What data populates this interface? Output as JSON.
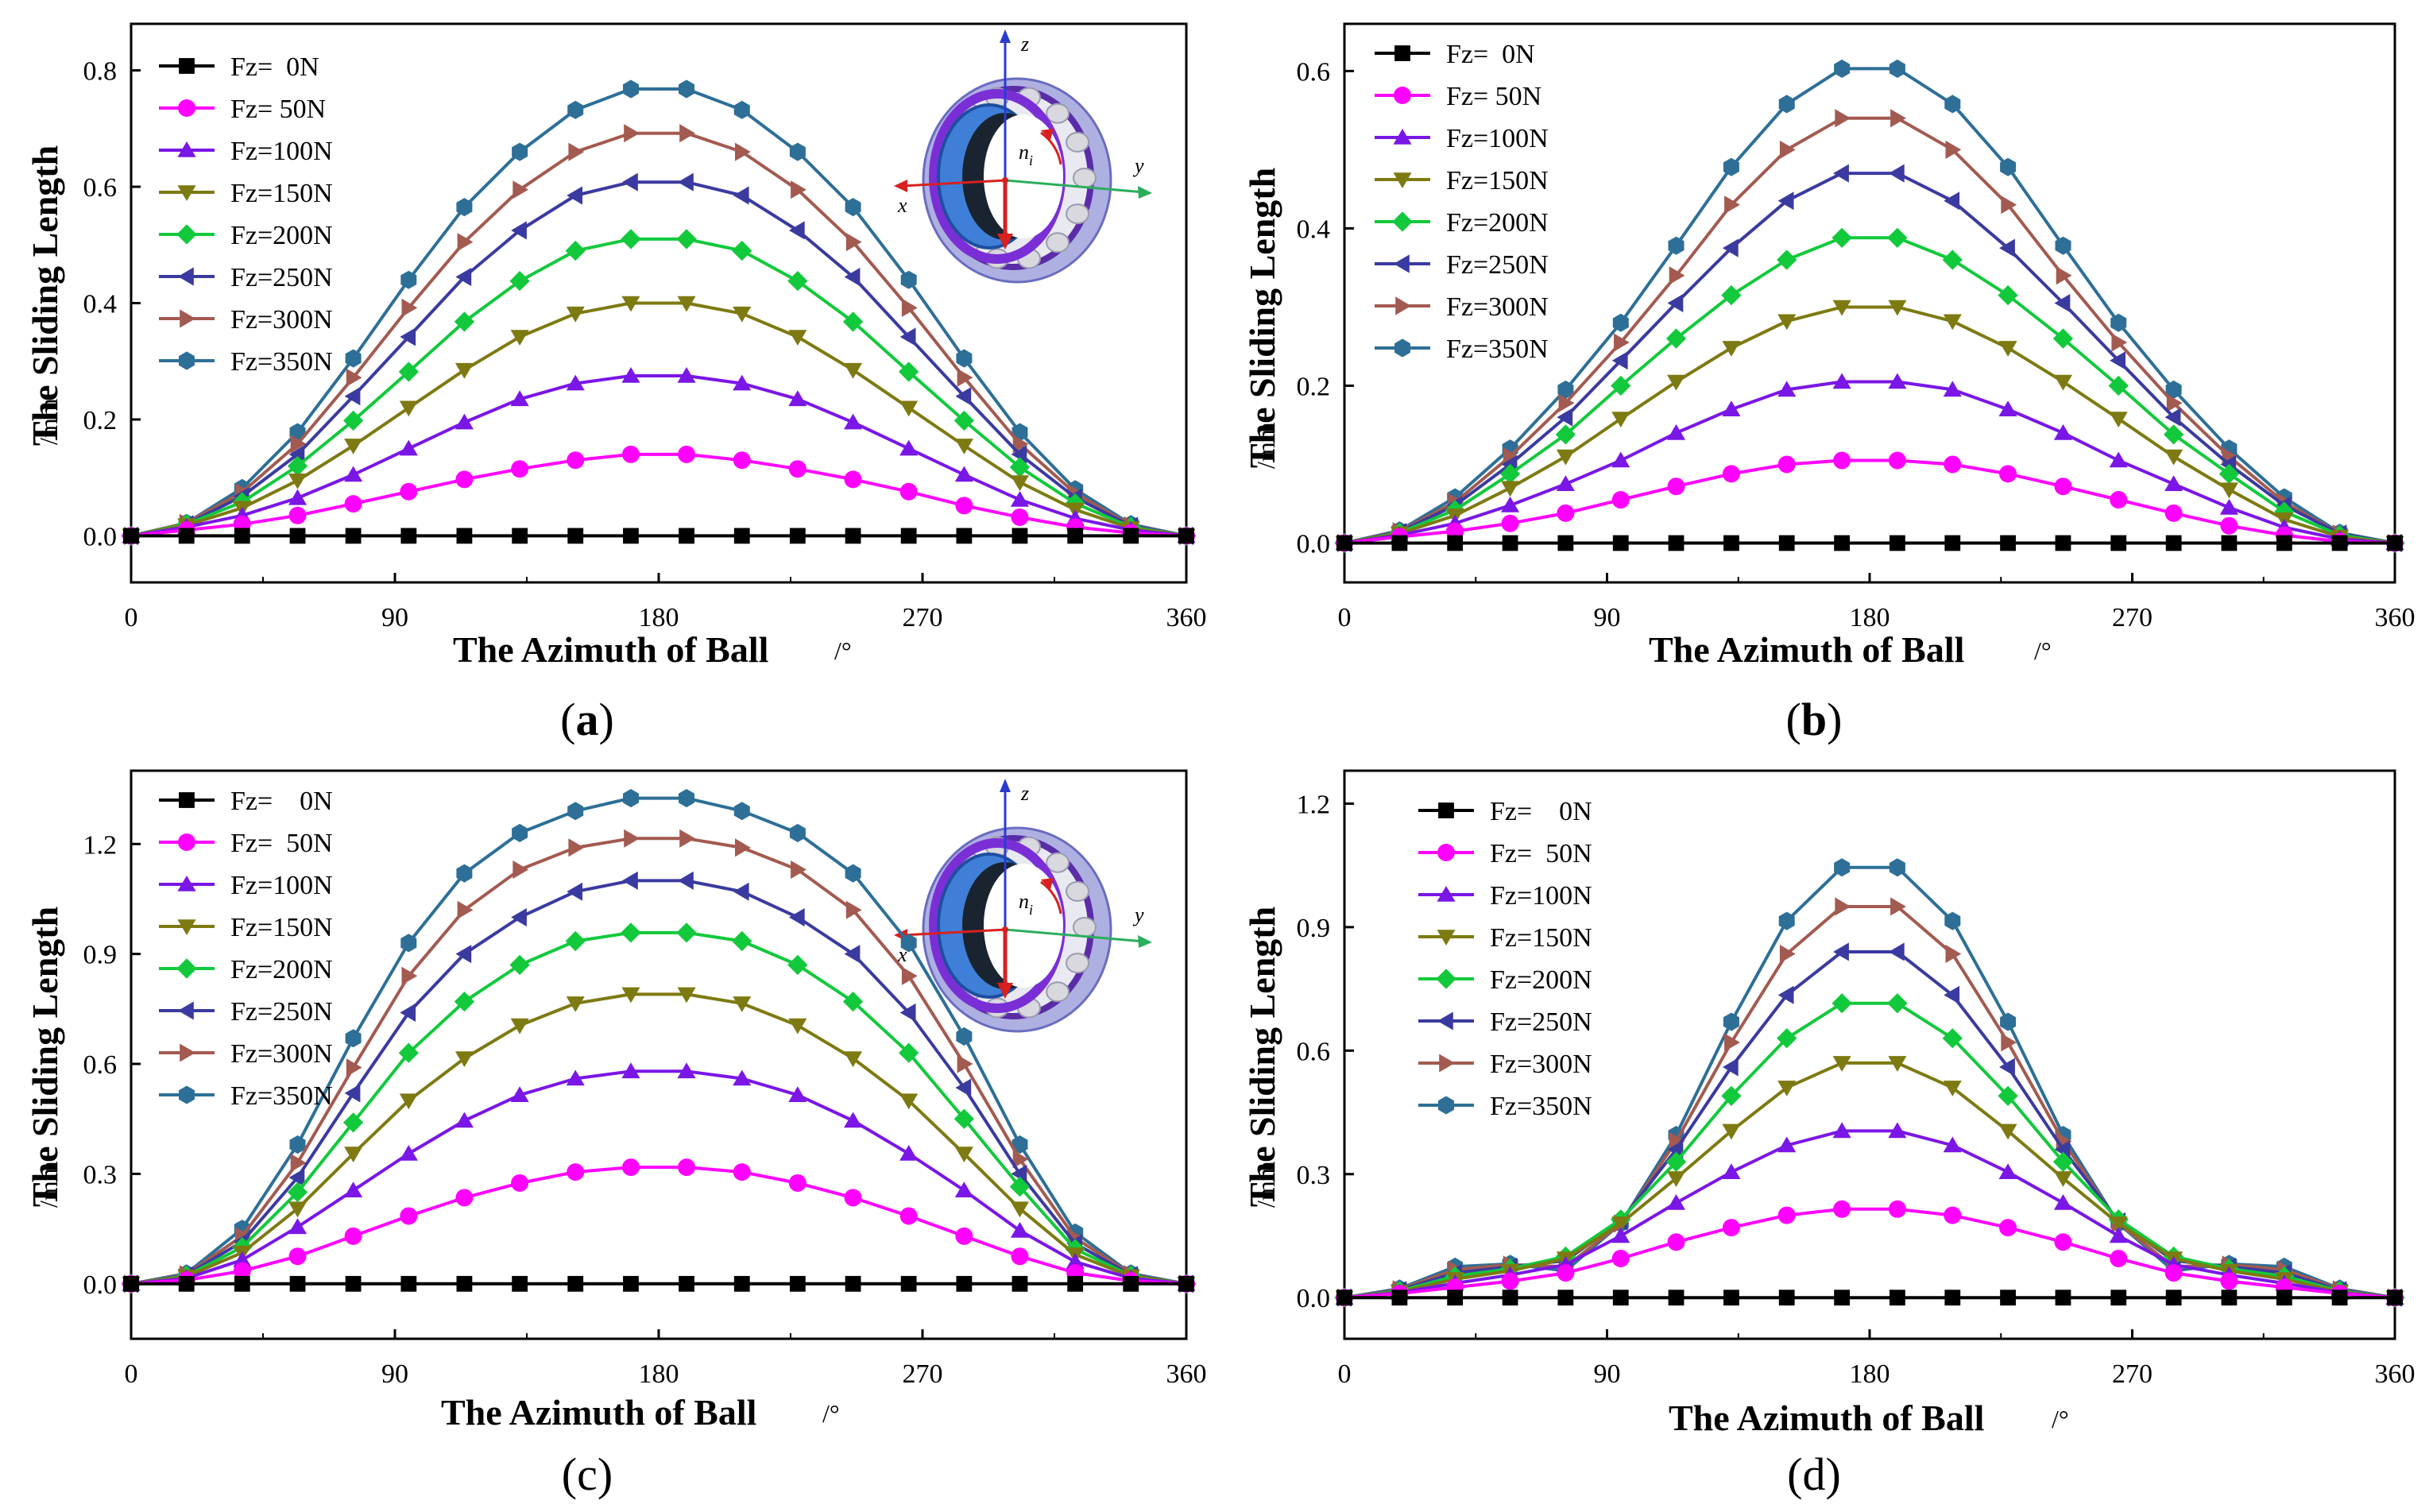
{
  "chart_data": [
    {
      "id": "a",
      "type": "line",
      "panel_label": "a",
      "xlabel": "The Azimuth of Ball",
      "xunit": "/°",
      "ylabel": "The Sliding Length",
      "yunit": "/mm",
      "xlim": [
        0,
        360
      ],
      "ylim": [
        -0.08,
        0.88
      ],
      "xticks": [
        0,
        90,
        180,
        270,
        360
      ],
      "yticks": [
        0.0,
        0.2,
        0.4,
        0.6,
        0.8
      ],
      "ytick_labels": [
        "0.0",
        "0.2",
        "0.4",
        "0.6",
        "0.8"
      ],
      "legend_labels": [
        "Fz=  0N",
        "Fz= 50N",
        "Fz=100N",
        "Fz=150N",
        "Fz=200N",
        "Fz=250N",
        "Fz=300N",
        "Fz=350N"
      ],
      "x": [
        0,
        18.9,
        37.9,
        56.8,
        75.8,
        94.7,
        113.7,
        132.6,
        151.6,
        170.5,
        189.5,
        208.4,
        227.4,
        246.3,
        265.3,
        284.2,
        303.2,
        322.1,
        341.1,
        360
      ],
      "series": [
        {
          "name": "Fz=  0N",
          "values": [
            0,
            0,
            0,
            0,
            0,
            0,
            0,
            0,
            0,
            0,
            0,
            0,
            0,
            0,
            0,
            0,
            0,
            0,
            0,
            0
          ]
        },
        {
          "name": "Fz= 50N",
          "values": [
            0,
            0.01,
            0.02,
            0.035,
            0.055,
            0.076,
            0.097,
            0.115,
            0.13,
            0.14,
            0.14,
            0.13,
            0.115,
            0.097,
            0.076,
            0.052,
            0.032,
            0.015,
            0.005,
            0
          ]
        },
        {
          "name": "Fz=100N",
          "values": [
            0,
            0.015,
            0.035,
            0.065,
            0.105,
            0.15,
            0.195,
            0.235,
            0.262,
            0.275,
            0.275,
            0.262,
            0.235,
            0.195,
            0.15,
            0.105,
            0.062,
            0.03,
            0.01,
            0
          ]
        },
        {
          "name": "Fz=150N",
          "values": [
            0,
            0.018,
            0.048,
            0.095,
            0.155,
            0.22,
            0.285,
            0.342,
            0.382,
            0.4,
            0.4,
            0.382,
            0.342,
            0.285,
            0.22,
            0.155,
            0.092,
            0.045,
            0.013,
            0
          ]
        },
        {
          "name": "Fz=200N",
          "values": [
            0,
            0.02,
            0.058,
            0.12,
            0.198,
            0.282,
            0.368,
            0.438,
            0.49,
            0.51,
            0.51,
            0.49,
            0.438,
            0.368,
            0.282,
            0.198,
            0.118,
            0.056,
            0.015,
            0
          ]
        },
        {
          "name": "Fz=250N",
          "values": [
            0,
            0.02,
            0.068,
            0.14,
            0.24,
            0.342,
            0.445,
            0.525,
            0.585,
            0.608,
            0.608,
            0.585,
            0.525,
            0.445,
            0.342,
            0.24,
            0.14,
            0.066,
            0.017,
            0
          ]
        },
        {
          "name": "Fz=300N",
          "values": [
            0,
            0.022,
            0.075,
            0.158,
            0.272,
            0.392,
            0.505,
            0.595,
            0.66,
            0.692,
            0.692,
            0.66,
            0.595,
            0.505,
            0.392,
            0.272,
            0.158,
            0.073,
            0.018,
            0
          ]
        },
        {
          "name": "Fz=350N",
          "values": [
            0,
            0.022,
            0.082,
            0.178,
            0.305,
            0.44,
            0.565,
            0.66,
            0.732,
            0.768,
            0.768,
            0.732,
            0.66,
            0.565,
            0.44,
            0.305,
            0.178,
            0.08,
            0.02,
            0
          ]
        }
      ]
    },
    {
      "id": "b",
      "type": "line",
      "panel_label": "b",
      "xlabel": "The Azimuth of Ball",
      "xunit": "/°",
      "ylabel": "The Sliding Length",
      "yunit": "/mm",
      "xlim": [
        0,
        360
      ],
      "ylim": [
        -0.05,
        0.66
      ],
      "xticks": [
        0,
        90,
        180,
        270,
        360
      ],
      "yticks": [
        0.0,
        0.2,
        0.4,
        0.6
      ],
      "ytick_labels": [
        "0.0",
        "0.2",
        "0.4",
        "0.6"
      ],
      "legend_labels": [
        "Fz=  0N",
        "Fz= 50N",
        "Fz=100N",
        "Fz=150N",
        "Fz=200N",
        "Fz=250N",
        "Fz=300N",
        "Fz=350N"
      ],
      "x": [
        0,
        18.9,
        37.9,
        56.8,
        75.8,
        94.7,
        113.7,
        132.6,
        151.6,
        170.5,
        189.5,
        208.4,
        227.4,
        246.3,
        265.3,
        284.2,
        303.2,
        322.1,
        341.1,
        360
      ],
      "series": [
        {
          "name": "Fz=  0N",
          "values": [
            0,
            0,
            0,
            0,
            0,
            0,
            0,
            0,
            0,
            0,
            0,
            0,
            0,
            0,
            0,
            0,
            0,
            0,
            0,
            0
          ]
        },
        {
          "name": "Fz= 50N",
          "values": [
            0,
            0.008,
            0.015,
            0.025,
            0.038,
            0.055,
            0.072,
            0.088,
            0.1,
            0.105,
            0.105,
            0.1,
            0.088,
            0.072,
            0.055,
            0.038,
            0.022,
            0.01,
            0.002,
            0
          ]
        },
        {
          "name": "Fz=100N",
          "values": [
            0,
            0.01,
            0.025,
            0.048,
            0.075,
            0.105,
            0.14,
            0.17,
            0.195,
            0.205,
            0.205,
            0.195,
            0.17,
            0.14,
            0.105,
            0.075,
            0.045,
            0.02,
            0.005,
            0
          ]
        },
        {
          "name": "Fz=150N",
          "values": [
            0,
            0.012,
            0.035,
            0.07,
            0.11,
            0.158,
            0.205,
            0.248,
            0.282,
            0.3,
            0.3,
            0.282,
            0.248,
            0.205,
            0.158,
            0.11,
            0.068,
            0.03,
            0.008,
            0
          ]
        },
        {
          "name": "Fz=200N",
          "values": [
            0,
            0.013,
            0.042,
            0.088,
            0.138,
            0.2,
            0.26,
            0.315,
            0.36,
            0.388,
            0.388,
            0.36,
            0.315,
            0.26,
            0.2,
            0.138,
            0.088,
            0.04,
            0.01,
            0
          ]
        },
        {
          "name": "Fz=250N",
          "values": [
            0,
            0.014,
            0.048,
            0.1,
            0.16,
            0.232,
            0.305,
            0.375,
            0.435,
            0.47,
            0.47,
            0.435,
            0.375,
            0.305,
            0.232,
            0.16,
            0.1,
            0.048,
            0.012,
            0
          ]
        },
        {
          "name": "Fz=300N",
          "values": [
            0,
            0.015,
            0.052,
            0.11,
            0.178,
            0.255,
            0.34,
            0.43,
            0.5,
            0.54,
            0.54,
            0.5,
            0.43,
            0.34,
            0.255,
            0.178,
            0.11,
            0.052,
            0.012,
            0
          ]
        },
        {
          "name": "Fz=350N",
          "values": [
            0,
            0.016,
            0.058,
            0.12,
            0.195,
            0.28,
            0.378,
            0.478,
            0.558,
            0.603,
            0.603,
            0.558,
            0.478,
            0.378,
            0.28,
            0.195,
            0.12,
            0.058,
            0.013,
            0
          ]
        }
      ]
    },
    {
      "id": "c",
      "type": "line",
      "panel_label": "c",
      "xlabel": "The Azimuth of Ball",
      "xunit": "/°",
      "ylabel": "The Sliding Length",
      "yunit": "/mm",
      "xlim": [
        0,
        360
      ],
      "ylim": [
        -0.15,
        1.4
      ],
      "xticks": [
        0,
        90,
        180,
        270,
        360
      ],
      "yticks": [
        0.0,
        0.3,
        0.6,
        0.9,
        1.2
      ],
      "ytick_labels": [
        "0.0",
        "0.3",
        "0.6",
        "0.9",
        "1.2"
      ],
      "legend_labels": [
        "Fz=    0N",
        "Fz=  50N",
        "Fz=100N",
        "Fz=150N",
        "Fz=200N",
        "Fz=250N",
        "Fz=300N",
        "Fz=350N"
      ],
      "x": [
        0,
        18.9,
        37.9,
        56.8,
        75.8,
        94.7,
        113.7,
        132.6,
        151.6,
        170.5,
        189.5,
        208.4,
        227.4,
        246.3,
        265.3,
        284.2,
        303.2,
        322.1,
        341.1,
        360
      ],
      "series": [
        {
          "name": "Fz=    0N",
          "values": [
            0,
            0,
            0,
            0,
            0,
            0,
            0,
            0,
            0,
            0,
            0,
            0,
            0,
            0,
            0,
            0,
            0,
            0,
            0,
            0
          ]
        },
        {
          "name": "Fz=  50N",
          "values": [
            0,
            0.01,
            0.035,
            0.075,
            0.13,
            0.185,
            0.235,
            0.275,
            0.305,
            0.318,
            0.318,
            0.305,
            0.275,
            0.235,
            0.185,
            0.13,
            0.075,
            0.03,
            0.008,
            0
          ]
        },
        {
          "name": "Fz=100N",
          "values": [
            0,
            0.015,
            0.065,
            0.155,
            0.255,
            0.355,
            0.445,
            0.515,
            0.56,
            0.58,
            0.58,
            0.56,
            0.515,
            0.445,
            0.355,
            0.255,
            0.145,
            0.06,
            0.015,
            0
          ]
        },
        {
          "name": "Fz=150N",
          "values": [
            0,
            0.02,
            0.085,
            0.205,
            0.355,
            0.5,
            0.615,
            0.705,
            0.765,
            0.79,
            0.79,
            0.765,
            0.705,
            0.615,
            0.5,
            0.355,
            0.205,
            0.08,
            0.02,
            0
          ]
        },
        {
          "name": "Fz=200N",
          "values": [
            0,
            0.022,
            0.1,
            0.25,
            0.44,
            0.63,
            0.77,
            0.87,
            0.935,
            0.958,
            0.958,
            0.935,
            0.87,
            0.77,
            0.63,
            0.45,
            0.265,
            0.095,
            0.022,
            0
          ]
        },
        {
          "name": "Fz=250N",
          "values": [
            0,
            0.024,
            0.115,
            0.29,
            0.52,
            0.74,
            0.9,
            1.0,
            1.07,
            1.1,
            1.1,
            1.07,
            1.0,
            0.9,
            0.74,
            0.535,
            0.3,
            0.11,
            0.024,
            0
          ]
        },
        {
          "name": "Fz=300N",
          "values": [
            0,
            0.026,
            0.13,
            0.33,
            0.59,
            0.84,
            1.02,
            1.13,
            1.19,
            1.215,
            1.215,
            1.19,
            1.13,
            1.02,
            0.84,
            0.6,
            0.34,
            0.125,
            0.026,
            0
          ]
        },
        {
          "name": "Fz=350N",
          "values": [
            0,
            0.028,
            0.15,
            0.38,
            0.67,
            0.93,
            1.12,
            1.23,
            1.29,
            1.325,
            1.325,
            1.29,
            1.23,
            1.12,
            0.93,
            0.675,
            0.38,
            0.14,
            0.028,
            0
          ]
        }
      ]
    },
    {
      "id": "d",
      "type": "line",
      "panel_label": "d",
      "xlabel": "The Azimuth of Ball",
      "xunit": "/°",
      "ylabel": "The Sliding Length",
      "yunit": "/mm",
      "xlim": [
        0,
        360
      ],
      "ylim": [
        -0.1,
        1.28
      ],
      "xticks": [
        0,
        90,
        180,
        270,
        360
      ],
      "yticks": [
        0.0,
        0.3,
        0.6,
        0.9,
        1.2
      ],
      "ytick_labels": [
        "0.0",
        "0.3",
        "0.6",
        "0.9",
        "1.2"
      ],
      "legend_labels": [
        "Fz=    0N",
        "Fz=  50N",
        "Fz=100N",
        "Fz=150N",
        "Fz=200N",
        "Fz=250N",
        "Fz=300N",
        "Fz=350N"
      ],
      "x": [
        0,
        18.9,
        37.9,
        56.8,
        75.8,
        94.7,
        113.7,
        132.6,
        151.6,
        170.5,
        189.5,
        208.4,
        227.4,
        246.3,
        265.3,
        284.2,
        303.2,
        322.1,
        341.1,
        360
      ],
      "series": [
        {
          "name": "Fz=    0N",
          "values": [
            0,
            0,
            0,
            0,
            0,
            0,
            0,
            0,
            0,
            0,
            0,
            0,
            0,
            0,
            0,
            0,
            0,
            0,
            0,
            0
          ]
        },
        {
          "name": "Fz=  50N",
          "values": [
            0,
            0.01,
            0.025,
            0.04,
            0.06,
            0.095,
            0.135,
            0.17,
            0.2,
            0.215,
            0.215,
            0.2,
            0.17,
            0.135,
            0.095,
            0.06,
            0.04,
            0.025,
            0.01,
            0
          ]
        },
        {
          "name": "Fz=100N",
          "values": [
            0,
            0.012,
            0.035,
            0.055,
            0.08,
            0.15,
            0.23,
            0.305,
            0.37,
            0.405,
            0.405,
            0.37,
            0.305,
            0.23,
            0.15,
            0.08,
            0.055,
            0.035,
            0.012,
            0
          ]
        },
        {
          "name": "Fz=150N",
          "values": [
            0,
            0.014,
            0.045,
            0.065,
            0.095,
            0.18,
            0.29,
            0.405,
            0.51,
            0.57,
            0.57,
            0.51,
            0.405,
            0.29,
            0.18,
            0.095,
            0.065,
            0.045,
            0.014,
            0
          ]
        },
        {
          "name": "Fz=200N",
          "values": [
            0,
            0.016,
            0.052,
            0.07,
            0.1,
            0.19,
            0.33,
            0.49,
            0.63,
            0.715,
            0.715,
            0.63,
            0.49,
            0.33,
            0.19,
            0.1,
            0.07,
            0.052,
            0.016,
            0
          ]
        },
        {
          "name": "Fz=250N",
          "values": [
            0,
            0.018,
            0.06,
            0.075,
            0.09,
            0.185,
            0.36,
            0.56,
            0.735,
            0.84,
            0.84,
            0.735,
            0.56,
            0.36,
            0.185,
            0.09,
            0.075,
            0.06,
            0.018,
            0
          ]
        },
        {
          "name": "Fz=300N",
          "values": [
            0,
            0.02,
            0.068,
            0.08,
            0.075,
            0.18,
            0.38,
            0.62,
            0.835,
            0.95,
            0.95,
            0.835,
            0.62,
            0.38,
            0.18,
            0.075,
            0.08,
            0.068,
            0.02,
            0
          ]
        },
        {
          "name": "Fz=350N",
          "values": [
            0,
            0.022,
            0.075,
            0.082,
            0.065,
            0.18,
            0.395,
            0.67,
            0.915,
            1.045,
            1.045,
            0.915,
            0.67,
            0.395,
            0.18,
            0.065,
            0.082,
            0.075,
            0.022,
            0
          ]
        }
      ]
    }
  ],
  "series_style": {
    "colors": [
      "#000000",
      "#ff00ff",
      "#7a16e6",
      "#7d7a12",
      "#12c93c",
      "#3b3aa0",
      "#a35a50",
      "#2d6f97"
    ],
    "markers": [
      "square",
      "circle",
      "triangle-up",
      "triangle-down",
      "diamond",
      "triangle-left",
      "triangle-right",
      "hexagon"
    ]
  },
  "inset": {
    "axis_labels": [
      "z",
      "y",
      "x"
    ],
    "speed_label": "n",
    "speed_subscript": "i"
  }
}
